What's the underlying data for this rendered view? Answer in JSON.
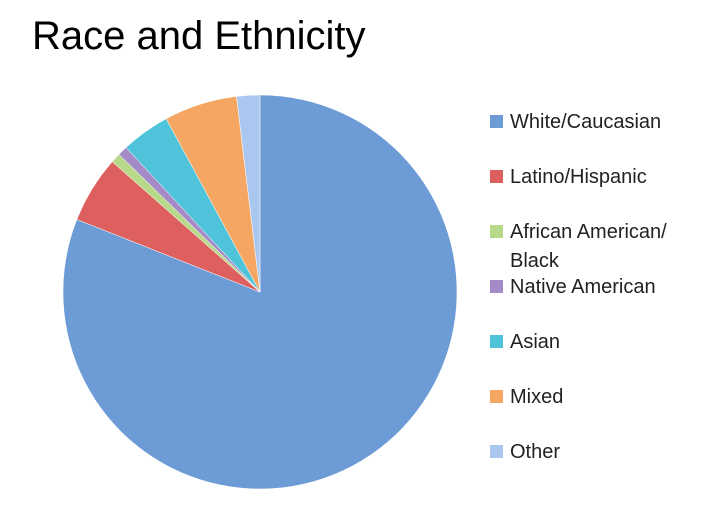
{
  "chart_data": {
    "type": "pie",
    "title": "Race and Ethnicity",
    "categories": [
      "White/Caucasian",
      "Latino/Hispanic",
      "African American/ Black",
      "Native American",
      "Asian",
      "Mixed",
      "Other"
    ],
    "values": [
      81,
      5.5,
      0.8,
      0.8,
      4,
      6,
      1.9
    ],
    "colors": [
      "#6c9bd6",
      "#dd5f5e",
      "#b7d98a",
      "#a48ac6",
      "#4fc3da",
      "#f5a663",
      "#aac7ef"
    ],
    "legend": "right"
  }
}
